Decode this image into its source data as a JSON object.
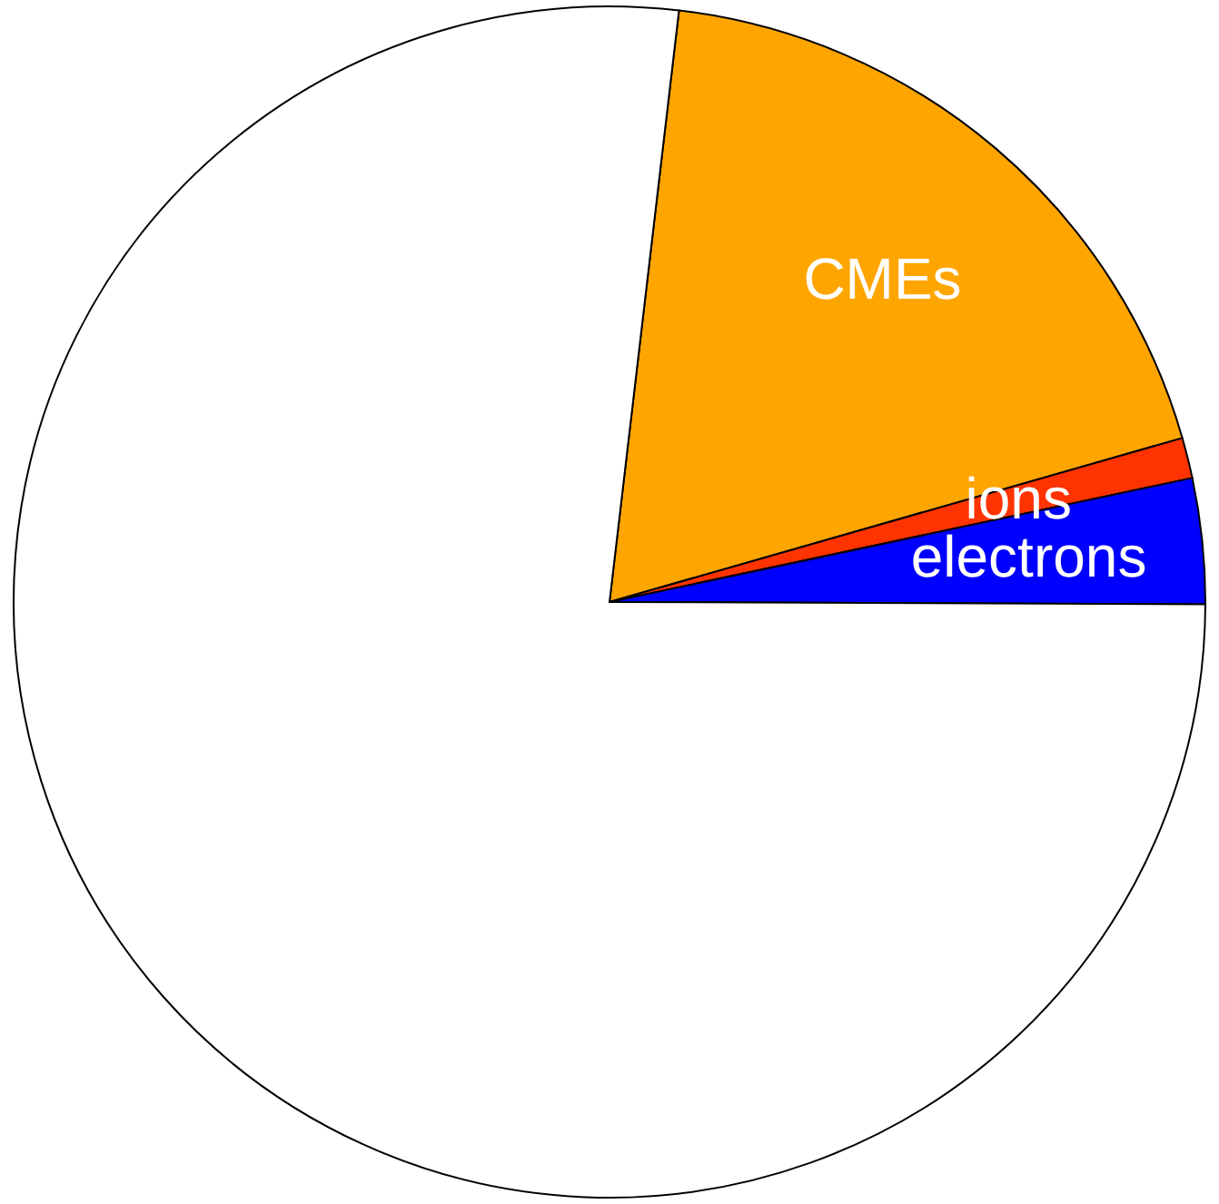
{
  "chart_data": {
    "type": "pie",
    "categories": [
      "CMEs",
      "ions",
      "electrons",
      null
    ],
    "values": [
      18.7,
      1.1,
      3.4,
      76.8
    ],
    "colors": [
      "#ffa500",
      "#ff3300",
      "#0000ff",
      "#ffffff"
    ]
  }
}
